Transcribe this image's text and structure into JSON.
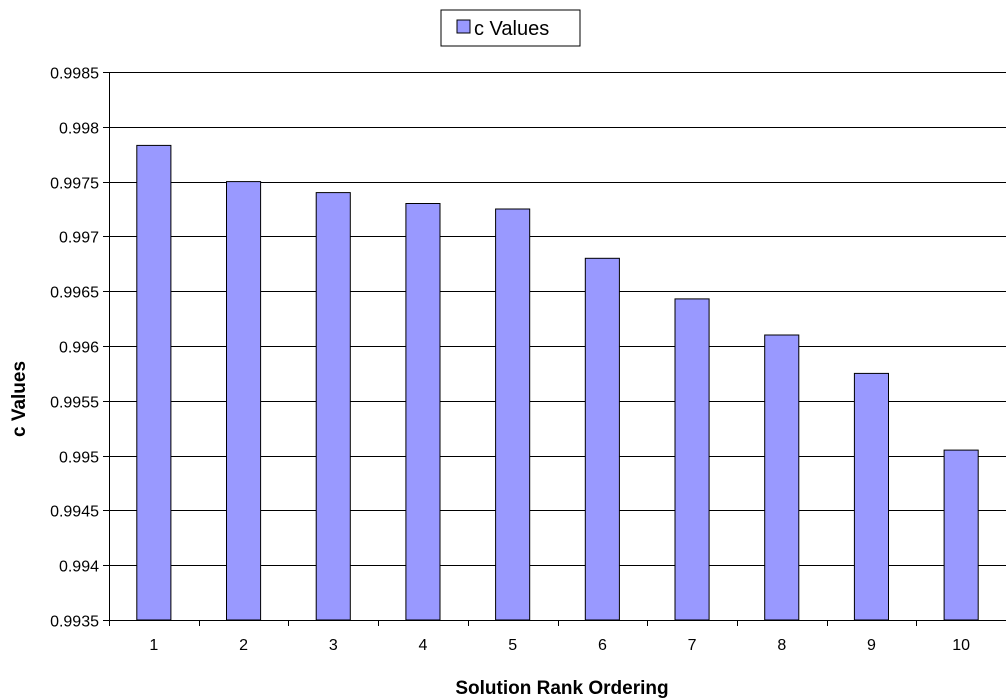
{
  "chart_data": {
    "type": "bar",
    "title": "",
    "xlabel": "Solution Rank Ordering",
    "ylabel": "c Values",
    "categories": [
      "1",
      "2",
      "3",
      "4",
      "5",
      "6",
      "7",
      "8",
      "9",
      "10"
    ],
    "series": [
      {
        "name": "c Values",
        "color": "#9999ff",
        "values": [
          0.99783,
          0.9975,
          0.9974,
          0.9973,
          0.99725,
          0.9968,
          0.99643,
          0.9961,
          0.99575,
          0.99505
        ]
      }
    ],
    "ylim": [
      0.9935,
      0.9985
    ],
    "yticks": [
      "0.9935",
      "0.994",
      "0.9945",
      "0.995",
      "0.9955",
      "0.996",
      "0.9965",
      "0.997",
      "0.9975",
      "0.998",
      "0.9985"
    ],
    "grid": true,
    "legend": "top-center",
    "colors": {
      "bar_fill": "#9999ff",
      "bar_stroke": "#000000",
      "gridline": "#000000",
      "background": "#ffffff"
    }
  }
}
